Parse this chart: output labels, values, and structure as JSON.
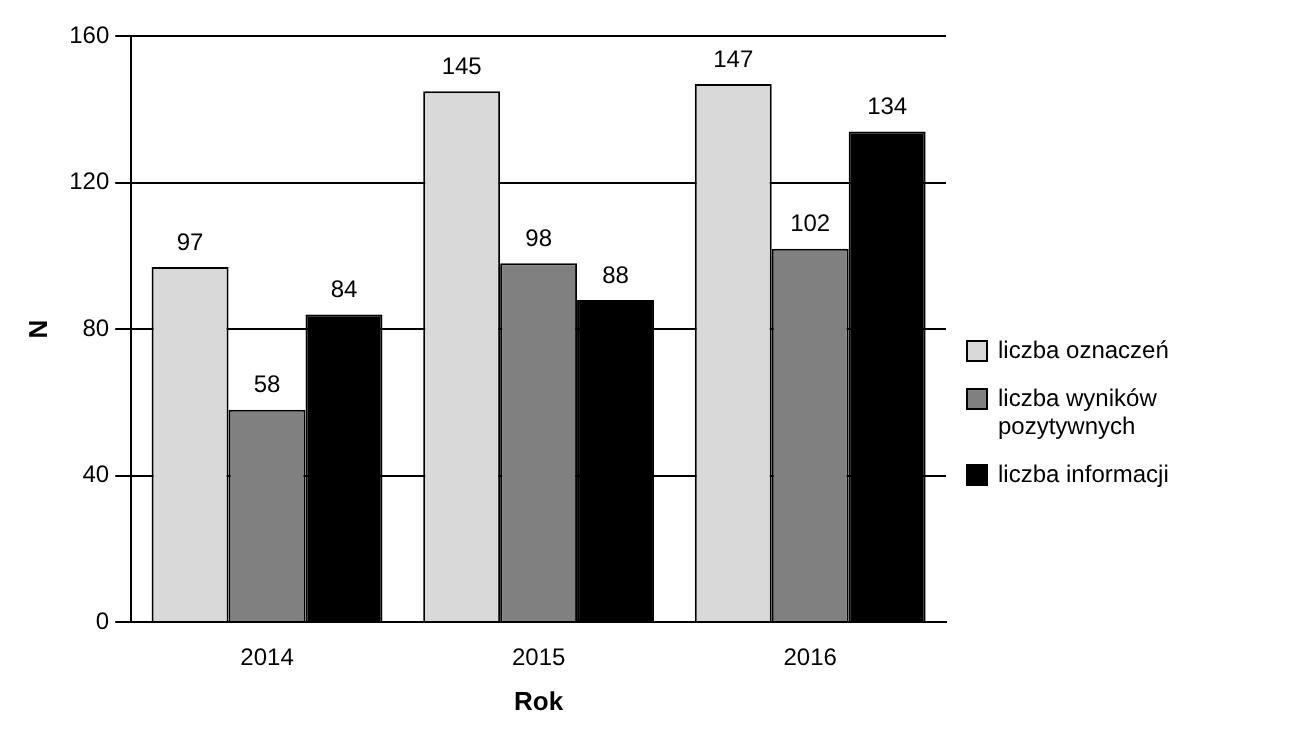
{
  "chart_data": {
    "type": "bar",
    "categories": [
      "2014",
      "2015",
      "2016"
    ],
    "xlabel": "Rok",
    "ylabel": "N",
    "ylim": [
      0,
      160
    ],
    "yticks": [
      0,
      40,
      80,
      120,
      160
    ],
    "grid": "y",
    "legend": "right",
    "data_labels": true,
    "series": [
      {
        "name": "liczba oznaczeń",
        "color": "#d9d9d9",
        "values": [
          97,
          145,
          147
        ]
      },
      {
        "name": "liczba wyników pozytywnych",
        "color": "#808080",
        "values": [
          58,
          98,
          102
        ]
      },
      {
        "name": "liczba informacji",
        "color": "#000000",
        "values": [
          84,
          88,
          134
        ]
      }
    ]
  }
}
